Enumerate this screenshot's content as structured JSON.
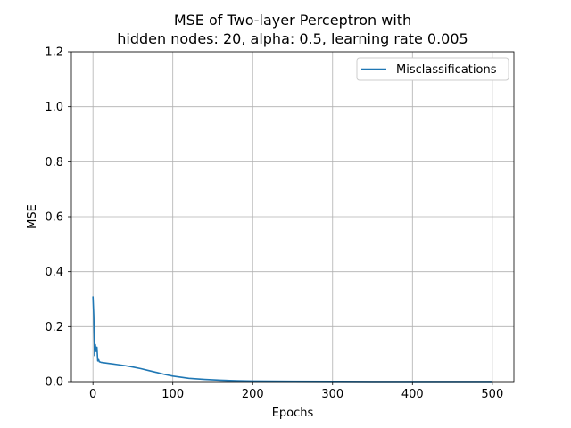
{
  "chart_data": {
    "type": "line",
    "title_line1": "MSE of Two-layer Perceptron with",
    "title_line2": "hidden nodes: 20, alpha: 0.5, learning rate 0.005",
    "xlabel": "Epochs",
    "ylabel": "MSE",
    "xlim": [
      -27,
      527
    ],
    "ylim": [
      0.0,
      1.2
    ],
    "xticks": [
      0,
      100,
      200,
      300,
      400,
      500
    ],
    "yticks": [
      0.0,
      0.2,
      0.4,
      0.6,
      0.8,
      1.0,
      1.2
    ],
    "xtick_labels": [
      "0",
      "100",
      "200",
      "300",
      "400",
      "500"
    ],
    "ytick_labels": [
      "0.0",
      "0.2",
      "0.4",
      "0.6",
      "0.8",
      "1.0",
      "1.2"
    ],
    "grid": true,
    "legend_position": "top-right",
    "series": [
      {
        "name": "Misclassifications",
        "color": "#1f77b4",
        "x": [
          0,
          1,
          2,
          3,
          4,
          5,
          6,
          7,
          8,
          10,
          15,
          20,
          30,
          40,
          50,
          60,
          70,
          80,
          90,
          100,
          110,
          120,
          140,
          160,
          180,
          200,
          250,
          300,
          350,
          400,
          450,
          500
        ],
        "y": [
          0.31,
          0.24,
          0.095,
          0.135,
          0.11,
          0.125,
          0.075,
          0.08,
          0.072,
          0.07,
          0.068,
          0.066,
          0.062,
          0.058,
          0.053,
          0.047,
          0.04,
          0.033,
          0.026,
          0.02,
          0.016,
          0.012,
          0.008,
          0.005,
          0.003,
          0.002,
          0.001,
          0.0005,
          0.0003,
          0.0002,
          0.0001,
          0.0001
        ]
      }
    ]
  }
}
